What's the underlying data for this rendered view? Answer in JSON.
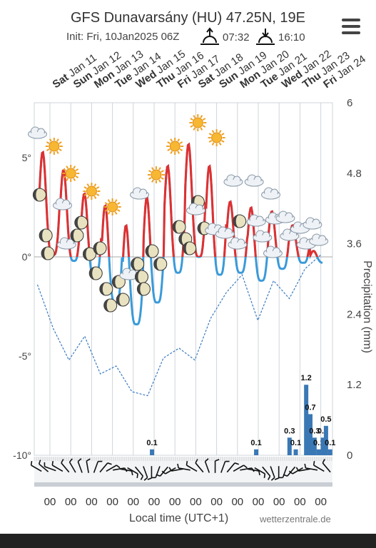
{
  "header": {
    "title": "GFS Dunavarsány (HU) 47.25N, 19E",
    "init": "Init: Fri, 10Jan2025 06Z",
    "sunrise": "07:32",
    "sunset": "16:10"
  },
  "footer": {
    "xlabel": "Local time (UTC+1)",
    "credit": "wetterzentrale.de"
  },
  "colors": {
    "temp_max": "#e03030",
    "temp_min": "#3a9ad9",
    "dew": "#3a7ac0",
    "precip": "#3a78b5",
    "grid": "#cfd4da"
  },
  "chart_data": {
    "type": "line",
    "days": [
      {
        "dow": "Sat",
        "date": "Jan 11"
      },
      {
        "dow": "Sun",
        "date": "Jan 12"
      },
      {
        "dow": "Mon",
        "date": "Jan 13"
      },
      {
        "dow": "Tue",
        "date": "Jan 14"
      },
      {
        "dow": "Wed",
        "date": "Jan 15"
      },
      {
        "dow": "Thu",
        "date": "Jan 16"
      },
      {
        "dow": "Fri",
        "date": "Jan 17"
      },
      {
        "dow": "Sat",
        "date": "Jan 18"
      },
      {
        "dow": "Sun",
        "date": "Jan 19"
      },
      {
        "dow": "Mon",
        "date": "Jan 20"
      },
      {
        "dow": "Tue",
        "date": "Jan 21"
      },
      {
        "dow": "Wed",
        "date": "Jan 22"
      },
      {
        "dow": "Thu",
        "date": "Jan 23"
      },
      {
        "dow": "Fri",
        "date": "Jan 24"
      }
    ],
    "x_tick_label": "00",
    "y_left": {
      "ticks": [
        "5°",
        "0°",
        "-5°",
        "-10°"
      ],
      "values": [
        5,
        0,
        -5,
        -10
      ],
      "range": [
        -10,
        7.5
      ]
    },
    "y_right": {
      "label": "Precipitation (mm)",
      "ticks": [
        "6",
        "4.8",
        "3.6",
        "2.4",
        "1.2",
        "0"
      ],
      "values": [
        6,
        4.8,
        3.6,
        2.4,
        1.2,
        0
      ],
      "range": [
        0,
        6
      ]
    },
    "temperature": {
      "daily_max": [
        5.3,
        4.4,
        3.2,
        2.6,
        1.6,
        3.0,
        4.6,
        5.7,
        4.6,
        2.8,
        2.5,
        2.3,
        1.6,
        0.3
      ],
      "daily_min": [
        0.1,
        -0.2,
        -1.0,
        -2.3,
        -3.4,
        -2.3,
        -0.8,
        0.0,
        -0.9,
        -0.8,
        -1.2,
        -0.6,
        -0.3,
        -0.3
      ]
    },
    "dew_point": [
      -1.4,
      -3.6,
      -5.2,
      -4.0,
      -5.9,
      -5.5,
      -6.8,
      -7.0,
      -5.1,
      -4.6,
      -5.2,
      -3.1,
      -1.8,
      -0.9,
      -3.2,
      -1.2,
      -2.1,
      -0.6,
      0.1
    ],
    "precipitation": [
      {
        "day": 5.4,
        "mm": 0.1,
        "label": "0.1"
      },
      {
        "day": 10.4,
        "mm": 0.1,
        "label": "0.1"
      },
      {
        "day": 12.0,
        "mm": 0.3,
        "label": "0.3"
      },
      {
        "day": 12.3,
        "mm": 0.1,
        "label": "0.1"
      },
      {
        "day": 12.8,
        "mm": 1.2,
        "label": "1.2"
      },
      {
        "day": 13.0,
        "mm": 0.7,
        "label": "0.7"
      },
      {
        "day": 13.2,
        "mm": 0.3,
        "label": "0.3"
      },
      {
        "day": 13.4,
        "mm": 0.1,
        "label": "0.1"
      },
      {
        "day": 13.6,
        "mm": 0.3,
        "label": "0.3"
      },
      {
        "day": 13.75,
        "mm": 0.5,
        "label": "0.5"
      },
      {
        "day": 13.95,
        "mm": 0.1,
        "label": "0.1"
      }
    ],
    "wind_directions_deg": [
      300,
      310,
      290,
      300,
      320,
      330,
      340,
      350,
      20,
      40,
      60,
      80,
      100,
      120,
      140,
      160,
      180,
      200,
      220,
      240,
      260,
      280,
      300,
      320,
      340,
      0,
      20,
      40,
      60,
      80,
      100,
      120,
      140,
      160,
      180,
      200,
      220,
      240,
      260,
      280,
      300,
      320
    ]
  }
}
